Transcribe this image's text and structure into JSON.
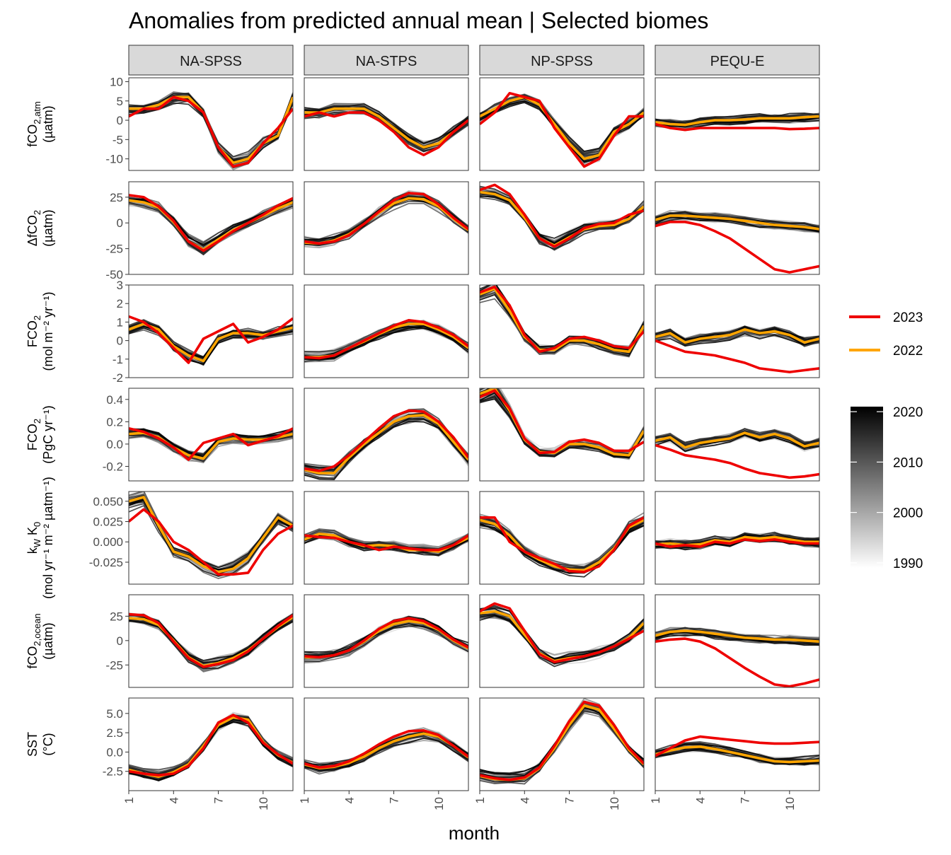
{
  "chart_data": {
    "type": "line",
    "title": "Anomalies from predicted annual mean | Selected biomes",
    "xlabel": "month",
    "x_ticks": [
      1,
      4,
      7,
      10
    ],
    "xlim": [
      1,
      12
    ],
    "biomes": [
      "NA-SPSS",
      "NA-STPS",
      "NP-SPSS",
      "PEQU-E"
    ],
    "variables": [
      {
        "key": "fco2_atm",
        "label_main": "fCO",
        "label_sub": "2,atm",
        "label_unit": "(µatm)",
        "ylim": [
          -13,
          11
        ],
        "ticks": [
          10,
          5,
          0,
          -5,
          -10
        ],
        "tick_labels": [
          "10",
          "5",
          "0",
          "-5",
          "-10"
        ]
      },
      {
        "key": "dfco2",
        "label_main": "ΔfCO",
        "label_sub": "2",
        "label_unit": "(µatm)",
        "ylim": [
          -50,
          40
        ],
        "ticks": [
          25,
          0,
          -25,
          -50
        ],
        "tick_labels": [
          "25",
          "0",
          "-25",
          "-50"
        ]
      },
      {
        "key": "fco2_mol",
        "label_main": "FCO",
        "label_sub": "2",
        "label_unit": "(mol m⁻² yr⁻¹)",
        "ylim": [
          -2,
          3
        ],
        "ticks": [
          3,
          2,
          1,
          0,
          -1,
          -2
        ],
        "tick_labels": [
          "3",
          "2",
          "1",
          "0",
          "-1",
          "-2"
        ]
      },
      {
        "key": "fco2_pgc",
        "label_main": "FCO",
        "label_sub": "2",
        "label_unit": "(PgC yr⁻¹)",
        "ylim": [
          -0.33,
          0.5
        ],
        "ticks": [
          0.4,
          0.2,
          0.0,
          -0.2
        ],
        "tick_labels": [
          "0.4",
          "0.2",
          "0.0",
          "-0.2"
        ]
      },
      {
        "key": "kw_k0",
        "label_main": "k",
        "label_sub": "W",
        "label_main2": " K",
        "label_sub2": "0",
        "label_unit": "(mol yr⁻¹ m⁻² µatm⁻¹)",
        "ylim": [
          -0.052,
          0.062
        ],
        "ticks": [
          0.05,
          0.025,
          0.0,
          -0.025
        ],
        "tick_labels": [
          "0.050",
          "0.025",
          "0.000",
          "-0.025"
        ]
      },
      {
        "key": "fco2_ocean",
        "label_main": "fCO",
        "label_sub": "2,ocean",
        "label_unit": "(µatm)",
        "ylim": [
          -48,
          47
        ],
        "ticks": [
          25,
          0,
          -25
        ],
        "tick_labels": [
          "25",
          "0",
          "-25"
        ]
      },
      {
        "key": "sst",
        "label_main": "SST",
        "label_sub": "",
        "label_unit": "(°C)",
        "ylim": [
          -5,
          7
        ],
        "ticks": [
          5,
          2.5,
          0,
          -2.5
        ],
        "tick_labels": [
          "5.0",
          "2.5",
          "0.0",
          "-2.5"
        ]
      }
    ],
    "series_highlight": [
      {
        "name": "2023",
        "color": "#ee0000"
      },
      {
        "name": "2022",
        "color": "#ffa500"
      }
    ],
    "colorbar": {
      "range": [
        1990,
        2020
      ],
      "ticks": [
        2020,
        2010,
        2000,
        1990
      ],
      "from_color": "#f2f2f2",
      "to_color": "#000000"
    },
    "months": [
      1,
      2,
      3,
      4,
      5,
      6,
      7,
      8,
      9,
      10,
      11,
      12
    ],
    "highlight": {
      "NA-SPSS": {
        "fco2_atm": {
          "2023": [
            1,
            3,
            3,
            6,
            5,
            2,
            -7,
            -12,
            -11,
            -6,
            -2,
            3
          ],
          "2022": [
            3,
            3,
            4,
            6,
            6,
            2,
            -7,
            -11,
            -10,
            -6,
            -4,
            6
          ]
        },
        "dfco2": {
          "2023": [
            27,
            25,
            16,
            2,
            -18,
            -27,
            -18,
            -8,
            0,
            8,
            17,
            24
          ],
          "2022": [
            22,
            20,
            15,
            1,
            -18,
            -26,
            -16,
            -7,
            0,
            7,
            14,
            20
          ]
        },
        "fco2_mol": {
          "2023": [
            1.3,
            1.0,
            0.4,
            -0.4,
            -1.2,
            0.1,
            0.5,
            0.9,
            -0.1,
            0.2,
            0.6,
            1.2
          ],
          "2022": [
            0.6,
            0.9,
            0.6,
            -0.3,
            -0.8,
            -1.1,
            0.1,
            0.4,
            0.4,
            0.3,
            0.5,
            0.7
          ]
        },
        "fco2_pgc": {
          "2023": [
            0.14,
            0.11,
            0.05,
            -0.03,
            -0.14,
            0.01,
            0.05,
            0.09,
            -0.01,
            0.03,
            0.07,
            0.14
          ],
          "2022": [
            0.09,
            0.1,
            0.06,
            -0.03,
            -0.1,
            -0.13,
            0.02,
            0.05,
            0.04,
            0.04,
            0.06,
            0.09
          ]
        },
        "kw_k0": {
          "2023": [
            0.025,
            0.04,
            0.025,
            0.0,
            -0.01,
            -0.025,
            -0.04,
            -0.04,
            -0.038,
            -0.01,
            0.01,
            0.02
          ],
          "2022": [
            0.05,
            0.055,
            0.02,
            -0.012,
            -0.018,
            -0.03,
            -0.037,
            -0.033,
            -0.02,
            0.005,
            0.03,
            0.02
          ]
        },
        "fco2_ocean": {
          "2023": [
            27,
            26,
            18,
            -1,
            -18,
            -27,
            -24,
            -20,
            -11,
            2,
            15,
            26
          ],
          "2022": [
            23,
            22,
            16,
            0,
            -17,
            -26,
            -23,
            -18,
            -10,
            2,
            14,
            24
          ]
        },
        "sst": {
          "2023": [
            -2.5,
            -2.8,
            -3.0,
            -2.8,
            -1.8,
            0.5,
            3.8,
            4.8,
            3.8,
            1.2,
            -0.3,
            -1.5
          ],
          "2022": [
            -2.3,
            -2.8,
            -3.2,
            -2.6,
            -1.6,
            0.8,
            3.5,
            4.5,
            4.2,
            1.3,
            -0.4,
            -1.4
          ]
        }
      },
      "NA-STPS": {
        "fco2_atm": {
          "2023": [
            1,
            2,
            1,
            2,
            2,
            0,
            -3,
            -7,
            -9,
            -7,
            -3,
            0
          ],
          "2022": [
            2,
            2,
            3,
            3,
            3,
            1,
            -2,
            -5,
            -7,
            -6,
            -3,
            0
          ]
        },
        "dfco2": {
          "2023": [
            -18,
            -20,
            -18,
            -12,
            -1,
            11,
            22,
            29,
            28,
            18,
            5,
            -6
          ],
          "2022": [
            -19,
            -20,
            -17,
            -11,
            -1,
            10,
            19,
            24,
            23,
            16,
            4,
            -7
          ]
        },
        "fco2_mol": {
          "2023": [
            -0.9,
            -0.95,
            -0.8,
            -0.4,
            0.0,
            0.4,
            0.8,
            1.1,
            1.0,
            0.7,
            0.3,
            -0.3
          ],
          "2022": [
            -0.9,
            -0.9,
            -0.8,
            -0.4,
            -0.05,
            0.35,
            0.7,
            0.9,
            0.9,
            0.6,
            0.2,
            -0.4
          ]
        },
        "fco2_pgc": {
          "2023": [
            -0.22,
            -0.24,
            -0.2,
            -0.1,
            0.02,
            0.14,
            0.25,
            0.3,
            0.29,
            0.2,
            0.06,
            -0.12
          ],
          "2022": [
            -0.23,
            -0.26,
            -0.26,
            -0.12,
            0.0,
            0.1,
            0.2,
            0.25,
            0.26,
            0.18,
            0.02,
            -0.14
          ]
        },
        "kw_k0": {
          "2023": [
            0.008,
            0.006,
            0.005,
            0.0,
            -0.004,
            -0.01,
            -0.006,
            -0.008,
            -0.01,
            -0.01,
            -0.004,
            0.008
          ],
          "2022": [
            0.003,
            0.01,
            0.008,
            0.0,
            -0.005,
            -0.004,
            -0.005,
            -0.01,
            -0.01,
            -0.012,
            -0.004,
            0.005
          ]
        },
        "fco2_ocean": {
          "2023": [
            -16,
            -17,
            -15,
            -10,
            0,
            12,
            20,
            23,
            20,
            12,
            1,
            -7
          ],
          "2022": [
            -17,
            -17,
            -15,
            -10,
            -1,
            10,
            17,
            20,
            18,
            11,
            0,
            -8
          ]
        },
        "sst": {
          "2023": [
            -1.5,
            -2.0,
            -1.8,
            -1.2,
            -0.2,
            1.0,
            2.0,
            2.7,
            2.8,
            2.2,
            0.8,
            -0.6
          ],
          "2022": [
            -1.6,
            -2.1,
            -1.9,
            -1.4,
            -0.6,
            0.5,
            1.4,
            2.0,
            2.4,
            2.0,
            0.8,
            -0.7
          ]
        }
      },
      "NP-SPSS": {
        "fco2_atm": {
          "2023": [
            -1,
            2,
            7,
            6,
            5,
            -2,
            -7,
            -12,
            -10,
            -4,
            1,
            1
          ],
          "2022": [
            1,
            3,
            5,
            6,
            4,
            -1,
            -6,
            -10,
            -9,
            -3,
            -1,
            2
          ]
        },
        "dfco2": {
          "2023": [
            32,
            37,
            28,
            8,
            -15,
            -23,
            -15,
            -5,
            -1,
            0,
            8,
            12
          ],
          "2022": [
            30,
            28,
            22,
            5,
            -15,
            -22,
            -14,
            -6,
            -3,
            -2,
            4,
            16
          ]
        },
        "fco2_mol": {
          "2023": [
            2.6,
            2.9,
            1.9,
            0.3,
            -0.6,
            -0.4,
            0.1,
            0.2,
            0.0,
            -0.3,
            -0.4,
            0.5
          ],
          "2022": [
            2.5,
            2.8,
            1.6,
            0.2,
            -0.5,
            -0.5,
            0.0,
            0.0,
            -0.2,
            -0.5,
            -0.6,
            0.8
          ]
        },
        "fco2_pgc": {
          "2023": [
            0.42,
            0.48,
            0.32,
            0.05,
            -0.08,
            -0.07,
            0.02,
            0.04,
            0.01,
            -0.06,
            -0.06,
            0.02
          ],
          "2022": [
            0.45,
            0.5,
            0.3,
            0.04,
            -0.07,
            -0.08,
            0.0,
            0.0,
            -0.03,
            -0.09,
            -0.1,
            0.12
          ]
        },
        "kw_k0": {
          "2023": [
            0.03,
            0.03,
            0.0,
            -0.012,
            -0.02,
            -0.027,
            -0.036,
            -0.037,
            -0.03,
            -0.01,
            0.02,
            0.03
          ],
          "2022": [
            0.027,
            0.022,
            0.008,
            -0.012,
            -0.022,
            -0.03,
            -0.034,
            -0.035,
            -0.025,
            -0.008,
            0.018,
            0.027
          ]
        },
        "fco2_ocean": {
          "2023": [
            30,
            38,
            33,
            10,
            -14,
            -22,
            -19,
            -16,
            -12,
            -6,
            2,
            10
          ],
          "2022": [
            28,
            30,
            25,
            6,
            -13,
            -21,
            -18,
            -16,
            -12,
            -6,
            3,
            18
          ]
        },
        "sst": {
          "2023": [
            -3.0,
            -3.4,
            -3.6,
            -3.3,
            -2.0,
            0.8,
            4.0,
            6.5,
            6.0,
            3.5,
            0.5,
            -1.5
          ],
          "2022": [
            -3.1,
            -3.5,
            -3.6,
            -3.4,
            -2.1,
            0.5,
            3.5,
            6.0,
            5.5,
            3.0,
            0.3,
            -1.6
          ]
        }
      },
      "PEQU-E": {
        "fco2_atm": {
          "2023": [
            -1,
            -2,
            -2.5,
            -2,
            -2,
            -2,
            -2,
            -2,
            -2,
            -2.3,
            -2.2,
            -2
          ],
          "2022": [
            -0.5,
            -1,
            -1.2,
            -0.5,
            0,
            0,
            0.2,
            0.5,
            0.5,
            0.5,
            0.8,
            1
          ]
        },
        "dfco2": {
          "2023": [
            -3,
            1,
            1,
            -2,
            -8,
            -15,
            -25,
            -35,
            -45,
            -48,
            -45,
            -42
          ],
          "2022": [
            3,
            7,
            7,
            6,
            5,
            4,
            2,
            0,
            -2,
            -3,
            -4,
            -6
          ]
        },
        "fco2_mol": {
          "2023": [
            0.0,
            -0.3,
            -0.6,
            -0.7,
            -0.8,
            -1.0,
            -1.2,
            -1.5,
            -1.6,
            -1.7,
            -1.6,
            -1.5
          ],
          "2022": [
            0.2,
            0.4,
            -0.1,
            0.1,
            0.2,
            0.3,
            0.6,
            0.4,
            0.5,
            0.3,
            -0.1,
            0.1
          ]
        },
        "fco2_pgc": {
          "2023": [
            -0.01,
            -0.05,
            -0.1,
            -0.12,
            -0.14,
            -0.17,
            -0.22,
            -0.26,
            -0.28,
            -0.3,
            -0.29,
            -0.27
          ],
          "2022": [
            0.03,
            0.06,
            -0.03,
            0.01,
            0.03,
            0.05,
            0.1,
            0.06,
            0.09,
            0.05,
            -0.02,
            0.01
          ]
        },
        "kw_k0": {
          "2023": [
            -0.002,
            -0.006,
            -0.004,
            -0.006,
            0.0,
            -0.002,
            0.003,
            0.001,
            0.003,
            0.0,
            -0.002,
            -0.002
          ],
          "2022": [
            -0.003,
            -0.002,
            -0.004,
            -0.003,
            0.002,
            0.0,
            0.006,
            0.004,
            0.006,
            0.003,
            0.0,
            0.0
          ]
        },
        "fco2_ocean": {
          "2023": [
            -1,
            1,
            2,
            -1,
            -8,
            -18,
            -28,
            -37,
            -45,
            -47,
            -44,
            -40
          ],
          "2022": [
            5,
            9,
            10,
            9,
            7,
            5,
            3,
            2,
            1,
            1,
            0,
            -1
          ]
        },
        "sst": {
          "2023": [
            -0.5,
            0.5,
            1.5,
            2.0,
            1.8,
            1.6,
            1.4,
            1.2,
            1.1,
            1.1,
            1.2,
            1.3
          ],
          "2022": [
            -0.3,
            0.2,
            0.6,
            0.7,
            0.4,
            0.0,
            -0.4,
            -0.8,
            -1.2,
            -1.3,
            -1.2,
            -1.1
          ]
        }
      }
    }
  }
}
